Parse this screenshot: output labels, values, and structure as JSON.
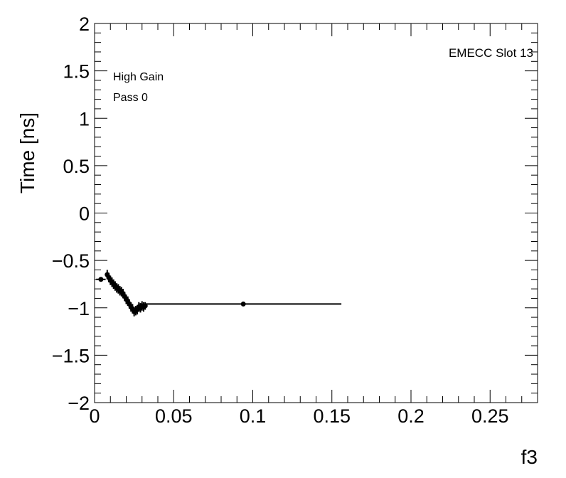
{
  "chart_data": {
    "type": "scatter",
    "title": "",
    "xlabel": "f3",
    "ylabel": "Time [ns]",
    "xlim": [
      0,
      0.28
    ],
    "ylim": [
      -2,
      2
    ],
    "x_ticks": [
      0,
      0.05,
      0.1,
      0.15,
      0.2,
      0.25
    ],
    "x_tick_labels": [
      "0",
      "0.05",
      "0.1",
      "0.15",
      "0.2",
      "0.25"
    ],
    "y_ticks": [
      -2,
      -1.5,
      -1,
      -0.5,
      0,
      0.5,
      1,
      1.5,
      2
    ],
    "y_tick_labels": [
      "−2",
      "−1.5",
      "−1",
      "−0.5",
      "0",
      "0.5",
      "1",
      "1.5",
      "2"
    ],
    "grid": false,
    "annotations": {
      "top_right": "EMECC Slot 13",
      "gain": "High Gain",
      "pass": "Pass 0"
    },
    "series": [
      {
        "points": [
          {
            "x": 0.004,
            "y": -0.7,
            "xerr": 0.003,
            "yerr": 0.02
          },
          {
            "x": 0.008,
            "y": -0.65,
            "xerr": 0.001,
            "yerr": 0.05
          },
          {
            "x": 0.009,
            "y": -0.68,
            "xerr": 0.001,
            "yerr": 0.05
          },
          {
            "x": 0.01,
            "y": -0.71,
            "xerr": 0.001,
            "yerr": 0.05
          },
          {
            "x": 0.011,
            "y": -0.73,
            "xerr": 0.001,
            "yerr": 0.05
          },
          {
            "x": 0.012,
            "y": -0.75,
            "xerr": 0.001,
            "yerr": 0.05
          },
          {
            "x": 0.013,
            "y": -0.77,
            "xerr": 0.001,
            "yerr": 0.05
          },
          {
            "x": 0.014,
            "y": -0.79,
            "xerr": 0.001,
            "yerr": 0.05
          },
          {
            "x": 0.015,
            "y": -0.8,
            "xerr": 0.001,
            "yerr": 0.05
          },
          {
            "x": 0.016,
            "y": -0.82,
            "xerr": 0.001,
            "yerr": 0.05
          },
          {
            "x": 0.017,
            "y": -0.83,
            "xerr": 0.001,
            "yerr": 0.05
          },
          {
            "x": 0.018,
            "y": -0.85,
            "xerr": 0.001,
            "yerr": 0.05
          },
          {
            "x": 0.019,
            "y": -0.88,
            "xerr": 0.001,
            "yerr": 0.05
          },
          {
            "x": 0.02,
            "y": -0.91,
            "xerr": 0.001,
            "yerr": 0.05
          },
          {
            "x": 0.021,
            "y": -0.93,
            "xerr": 0.001,
            "yerr": 0.05
          },
          {
            "x": 0.022,
            "y": -0.96,
            "xerr": 0.001,
            "yerr": 0.05
          },
          {
            "x": 0.023,
            "y": -0.99,
            "xerr": 0.001,
            "yerr": 0.05
          },
          {
            "x": 0.024,
            "y": -1.01,
            "xerr": 0.001,
            "yerr": 0.05
          },
          {
            "x": 0.025,
            "y": -1.04,
            "xerr": 0.001,
            "yerr": 0.05
          },
          {
            "x": 0.026,
            "y": -1.03,
            "xerr": 0.001,
            "yerr": 0.05
          },
          {
            "x": 0.027,
            "y": -1.02,
            "xerr": 0.001,
            "yerr": 0.05
          },
          {
            "x": 0.028,
            "y": -0.99,
            "xerr": 0.001,
            "yerr": 0.05
          },
          {
            "x": 0.029,
            "y": -1.0,
            "xerr": 0.001,
            "yerr": 0.05
          },
          {
            "x": 0.03,
            "y": -0.98,
            "xerr": 0.001,
            "yerr": 0.05
          },
          {
            "x": 0.031,
            "y": -0.99,
            "xerr": 0.001,
            "yerr": 0.05
          },
          {
            "x": 0.032,
            "y": -0.98,
            "xerr": 0.001,
            "yerr": 0.04
          },
          {
            "x": 0.094,
            "y": -0.96,
            "xerr": 0.062,
            "yerr": 0.01
          }
        ]
      }
    ]
  }
}
